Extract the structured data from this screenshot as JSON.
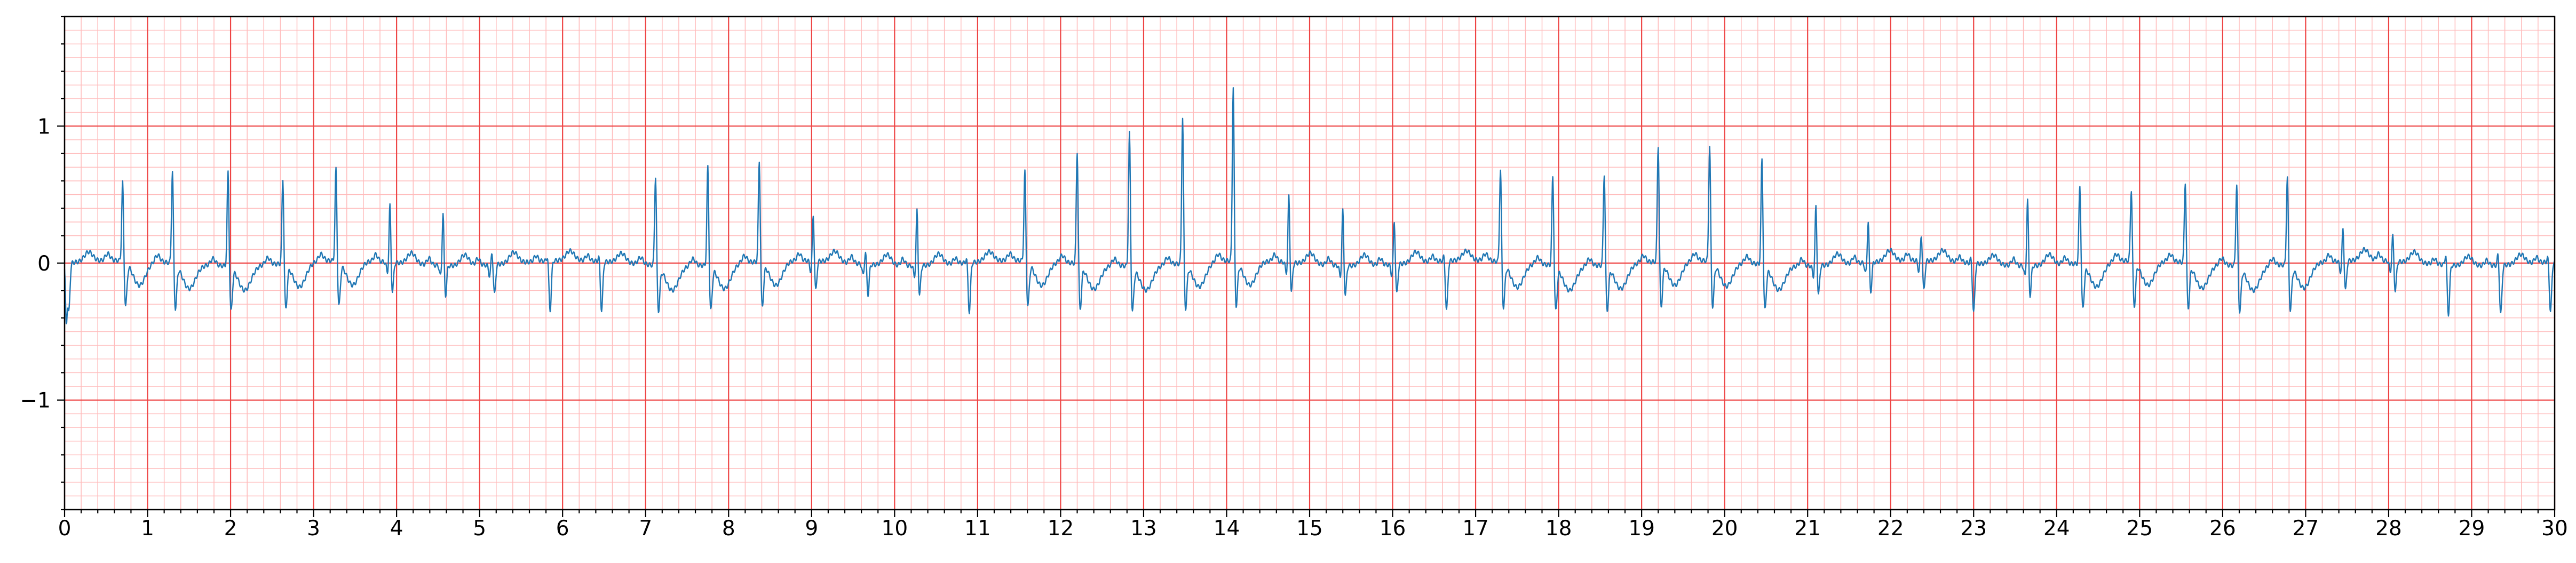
{
  "chart_data": {
    "type": "line",
    "title": "",
    "xlabel": "",
    "ylabel": "",
    "xlim": [
      0,
      30
    ],
    "ylim": [
      -1.8,
      1.8
    ],
    "x_ticks": [
      0,
      1,
      2,
      3,
      4,
      5,
      6,
      7,
      8,
      9,
      10,
      11,
      12,
      13,
      14,
      15,
      16,
      17,
      18,
      19,
      20,
      21,
      22,
      23,
      24,
      25,
      26,
      27,
      28,
      29,
      30
    ],
    "x_tick_labels": [
      "0",
      "1",
      "2",
      "3",
      "4",
      "5",
      "6",
      "7",
      "8",
      "9",
      "10",
      "11",
      "12",
      "13",
      "14",
      "15",
      "16",
      "17",
      "18",
      "19",
      "20",
      "21",
      "22",
      "23",
      "24",
      "25",
      "26",
      "27",
      "28",
      "29",
      "30"
    ],
    "y_ticks": [
      -1,
      0,
      1
    ],
    "y_tick_labels": [
      "−1",
      "0",
      "1"
    ],
    "grid": "on",
    "colors": {
      "signal": "#1f77b4",
      "major_grid": "#ee4444",
      "minor_grid": "#ffbbbb",
      "axes": "#000000"
    },
    "beats": [
      {
        "t": 0.05,
        "r": -0.4,
        "shape": "neg"
      },
      {
        "t": 0.7,
        "r": 0.6,
        "shape": "ectopic"
      },
      {
        "t": 1.3,
        "r": 0.7,
        "shape": "ectopic"
      },
      {
        "t": 1.97,
        "r": 0.72,
        "shape": "ectopic"
      },
      {
        "t": 2.63,
        "r": 0.65,
        "shape": "ectopic"
      },
      {
        "t": 3.27,
        "r": 0.7,
        "shape": "ectopic"
      },
      {
        "t": 3.92,
        "r": 0.43,
        "shape": "normal"
      },
      {
        "t": 4.56,
        "r": 0.4,
        "shape": "normal"
      },
      {
        "t": 5.15,
        "r": 0.1,
        "shape": "normal"
      },
      {
        "t": 5.85,
        "r": 0.05,
        "shape": "neg"
      },
      {
        "t": 6.47,
        "r": 0.05,
        "shape": "neg"
      },
      {
        "t": 7.12,
        "r": 0.68,
        "shape": "ectopic"
      },
      {
        "t": 7.75,
        "r": 0.75,
        "shape": "ectopic"
      },
      {
        "t": 8.37,
        "r": 0.77,
        "shape": "ectopic"
      },
      {
        "t": 9.02,
        "r": 0.35,
        "shape": "normal"
      },
      {
        "t": 9.65,
        "r": 0.1,
        "shape": "normal"
      },
      {
        "t": 10.27,
        "r": 0.42,
        "shape": "normal"
      },
      {
        "t": 10.9,
        "r": 0.05,
        "shape": "neg"
      },
      {
        "t": 11.57,
        "r": 0.68,
        "shape": "ectopic"
      },
      {
        "t": 12.2,
        "r": 0.85,
        "shape": "ectopic"
      },
      {
        "t": 12.83,
        "r": 1.0,
        "shape": "ectopic"
      },
      {
        "t": 13.47,
        "r": 1.1,
        "shape": "ectopic"
      },
      {
        "t": 14.08,
        "r": 1.3,
        "shape": "ectopic"
      },
      {
        "t": 14.75,
        "r": 0.5,
        "shape": "normal"
      },
      {
        "t": 15.4,
        "r": 0.42,
        "shape": "normal"
      },
      {
        "t": 16.02,
        "r": 0.33,
        "shape": "normal"
      },
      {
        "t": 16.65,
        "r": 0.05,
        "shape": "neg"
      },
      {
        "t": 17.3,
        "r": 0.7,
        "shape": "ectopic"
      },
      {
        "t": 17.93,
        "r": 0.68,
        "shape": "ectopic"
      },
      {
        "t": 18.55,
        "r": 0.7,
        "shape": "ectopic"
      },
      {
        "t": 19.2,
        "r": 0.88,
        "shape": "ectopic"
      },
      {
        "t": 19.82,
        "r": 0.87,
        "shape": "ectopic"
      },
      {
        "t": 20.45,
        "r": 0.8,
        "shape": "ectopic"
      },
      {
        "t": 21.1,
        "r": 0.45,
        "shape": "normal"
      },
      {
        "t": 21.73,
        "r": 0.32,
        "shape": "normal"
      },
      {
        "t": 22.37,
        "r": 0.2,
        "shape": "normal"
      },
      {
        "t": 23.0,
        "r": 0.05,
        "shape": "neg"
      },
      {
        "t": 23.65,
        "r": 0.5,
        "shape": "normal"
      },
      {
        "t": 24.28,
        "r": 0.6,
        "shape": "ectopic"
      },
      {
        "t": 24.9,
        "r": 0.55,
        "shape": "ectopic"
      },
      {
        "t": 25.55,
        "r": 0.62,
        "shape": "ectopic"
      },
      {
        "t": 26.17,
        "r": 0.62,
        "shape": "ectopic"
      },
      {
        "t": 26.78,
        "r": 0.67,
        "shape": "ectopic"
      },
      {
        "t": 27.45,
        "r": 0.25,
        "shape": "normal"
      },
      {
        "t": 28.05,
        "r": 0.2,
        "shape": "normal"
      },
      {
        "t": 28.72,
        "r": 0.1,
        "shape": "neg"
      },
      {
        "t": 29.35,
        "r": 0.1,
        "shape": "neg"
      },
      {
        "t": 29.95,
        "r": 0.05,
        "shape": "neg"
      }
    ]
  }
}
